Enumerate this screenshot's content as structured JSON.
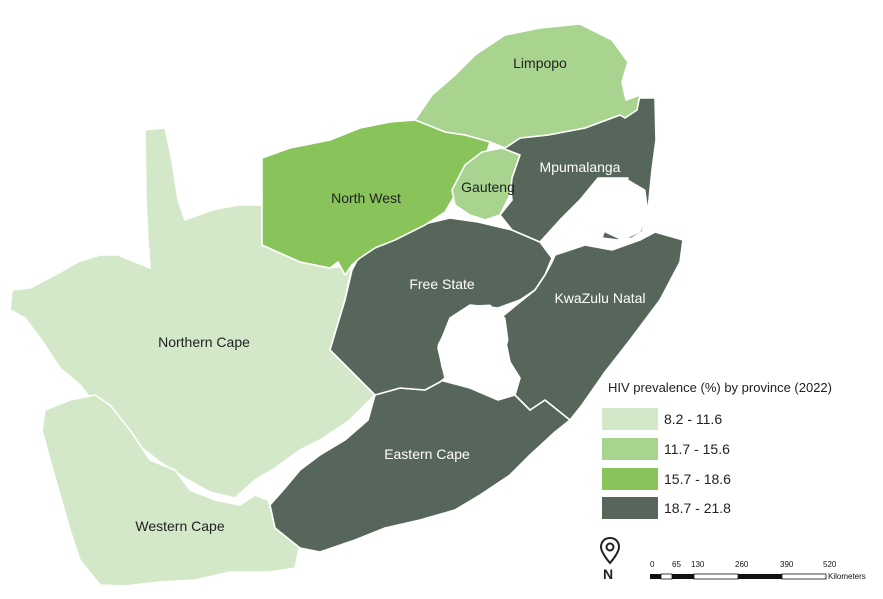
{
  "legend": {
    "title": "HIV prevalence (%) by province (2022)",
    "classes": [
      {
        "range": "8.2 - 11.6",
        "color": "#d3e8c8"
      },
      {
        "range": "11.7 - 15.6",
        "color": "#a8d48f"
      },
      {
        "range": "15.7 - 18.6",
        "color": "#88c45a"
      },
      {
        "range": "18.7 - 21.8",
        "color": "#56665a"
      }
    ]
  },
  "provinces": [
    {
      "name": "Limpopo",
      "class": 1,
      "label_color": "#222222"
    },
    {
      "name": "North West",
      "class": 2,
      "label_color": "#222222"
    },
    {
      "name": "Gauteng",
      "class": 1,
      "label_color": "#222222"
    },
    {
      "name": "Mpumalanga",
      "class": 3,
      "label_color": "#ffffff"
    },
    {
      "name": "Free State",
      "class": 3,
      "label_color": "#ffffff"
    },
    {
      "name": "KwaZulu Natal",
      "class": 3,
      "label_color": "#ffffff"
    },
    {
      "name": "Northern Cape",
      "class": 0,
      "label_color": "#222222"
    },
    {
      "name": "Eastern Cape",
      "class": 3,
      "label_color": "#ffffff"
    },
    {
      "name": "Western Cape",
      "class": 0,
      "label_color": "#222222"
    }
  ],
  "north_arrow": {
    "label": "N",
    "icon": "map-pin-icon"
  },
  "scale_bar": {
    "ticks": [
      "0",
      "65",
      "130",
      "260",
      "390",
      "520"
    ],
    "unit": "Kilometers"
  }
}
